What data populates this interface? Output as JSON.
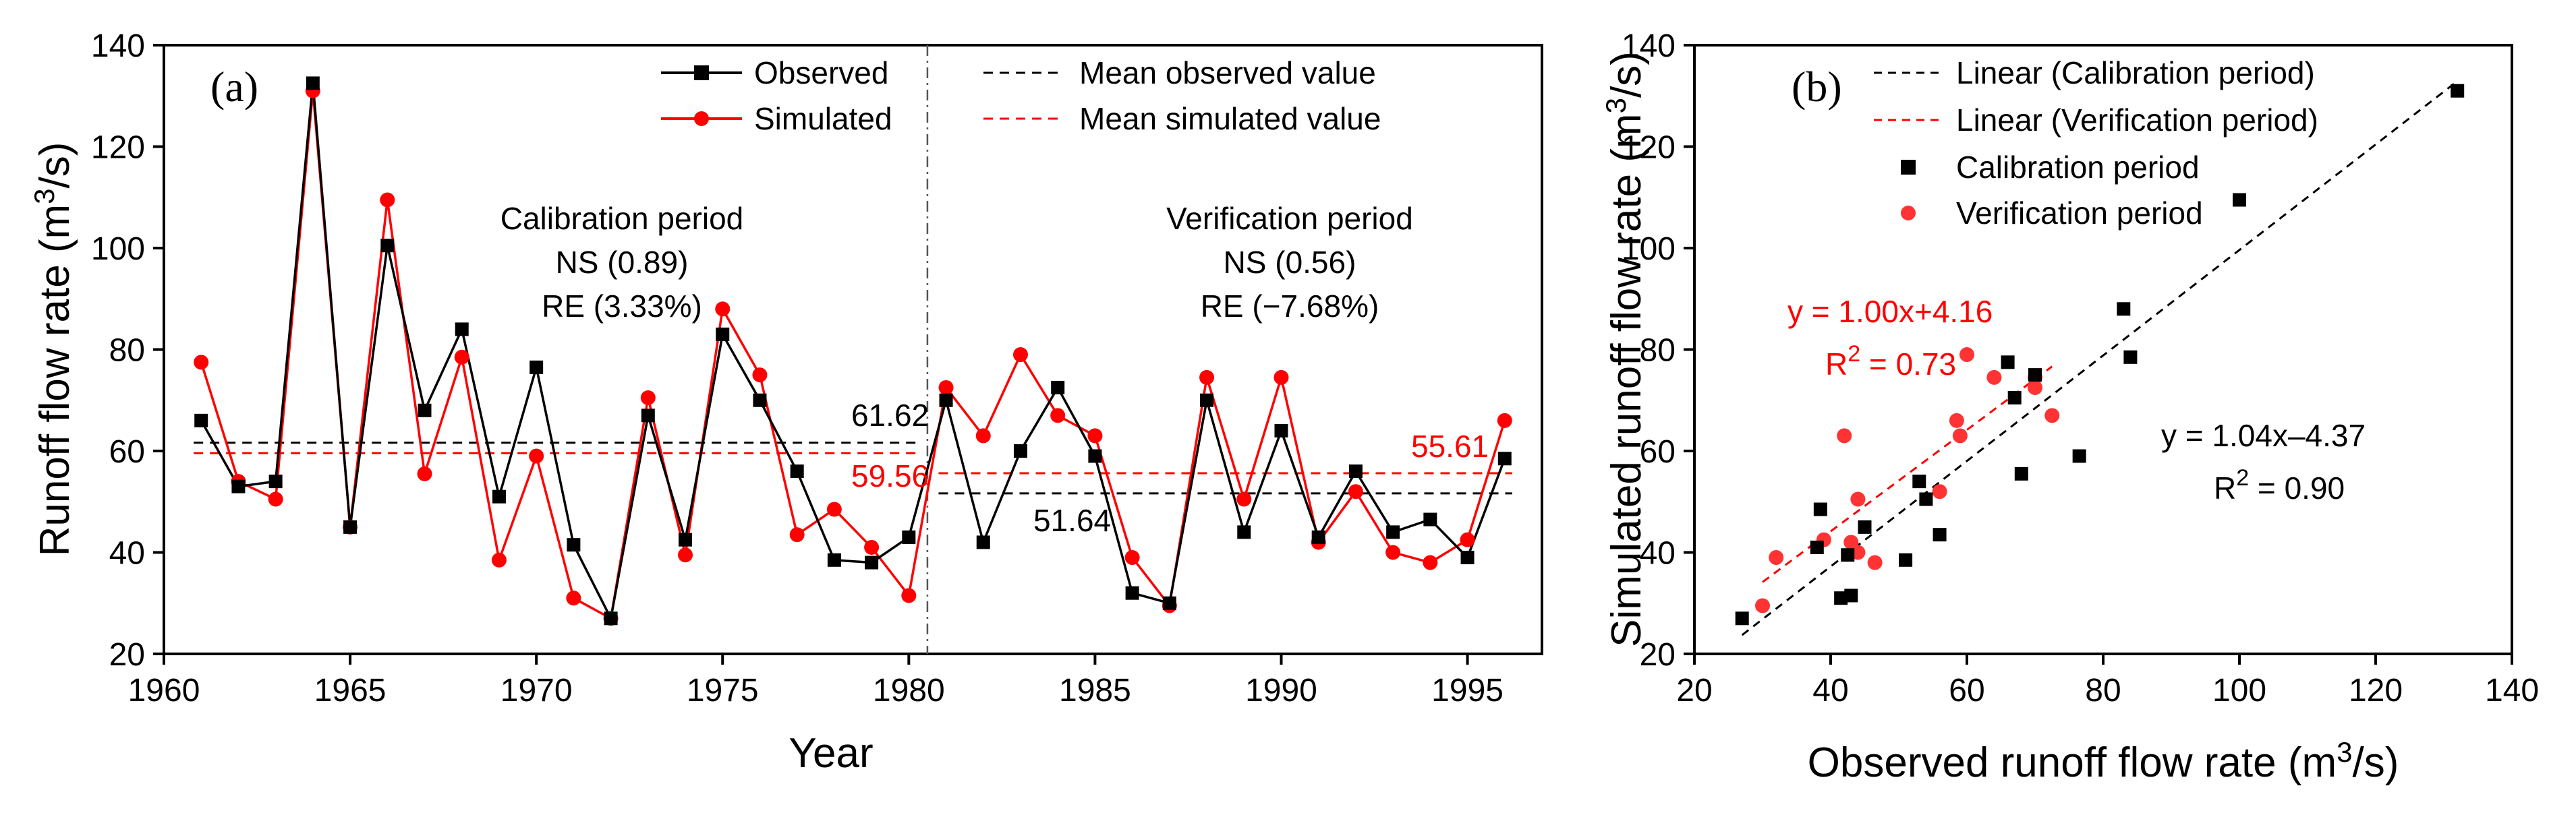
{
  "chart_data": [
    {
      "type": "line",
      "panel_label": "(a)",
      "xlabel": "Year",
      "ylabel_main": "Runoff flow rate (m",
      "ylabel_sup": "3",
      "ylabel_tail": "/s)",
      "xlim": [
        1960,
        1997
      ],
      "ylim": [
        20,
        140
      ],
      "x_ticks": [
        "1960",
        "1965",
        "1970",
        "1975",
        "1980",
        "1985",
        "1990",
        "1995"
      ],
      "y_ticks": [
        "20",
        "40",
        "60",
        "80",
        "100",
        "120",
        "140"
      ],
      "legend": {
        "observed": "Observed",
        "simulated": "Simulated",
        "mean_observed": "Mean observed value",
        "mean_simulated": "Mean simulated value"
      },
      "colors": {
        "observed": "#000000",
        "simulated": "#ff0000"
      },
      "divider_year": 1980.5,
      "years": [
        1961,
        1962,
        1963,
        1964,
        1965,
        1966,
        1967,
        1968,
        1969,
        1970,
        1971,
        1972,
        1973,
        1974,
        1975,
        1976,
        1977,
        1978,
        1979,
        1980,
        1981,
        1982,
        1983,
        1984,
        1985,
        1986,
        1987,
        1988,
        1989,
        1990,
        1991,
        1992,
        1993,
        1994,
        1995,
        1996
      ],
      "series": [
        {
          "name": "Observed",
          "values": [
            66,
            53,
            54,
            132.5,
            45,
            100.5,
            68,
            84,
            51,
            76.5,
            41.5,
            27,
            67,
            42.5,
            83,
            70,
            56,
            38.5,
            38,
            43,
            70,
            42,
            60,
            72.5,
            59,
            32,
            30,
            70,
            44,
            64,
            43,
            56,
            44,
            46.5,
            39,
            58.5
          ]
        },
        {
          "name": "Simulated",
          "values": [
            77.5,
            54,
            50.5,
            131,
            45,
            109.5,
            55.5,
            78.5,
            38.5,
            59,
            31,
            27,
            70.5,
            39.5,
            88,
            75,
            43.5,
            48.5,
            41,
            31.5,
            72.5,
            63,
            79,
            67,
            63,
            39,
            29.5,
            74.5,
            50.5,
            74.5,
            42,
            52,
            40,
            38,
            42.5,
            66
          ]
        }
      ],
      "calibration": {
        "title": "Calibration period",
        "ns": "NS (0.89)",
        "re": "RE (3.33%)",
        "mean_observed": 61.62,
        "mean_simulated": 59.56,
        "mean_observed_label": "61.62",
        "mean_simulated_label": "59.56",
        "x_range": [
          1961,
          1980
        ]
      },
      "verification": {
        "title": "Verification period",
        "ns": "NS (0.56)",
        "re": "RE (−7.68%)",
        "mean_observed": 51.64,
        "mean_simulated": 55.61,
        "mean_observed_label": "51.64",
        "mean_simulated_label": "55.61",
        "x_range": [
          1981,
          1996
        ]
      }
    },
    {
      "type": "scatter",
      "panel_label": "(b)",
      "xlabel_main": "Observed runoff flow rate (m",
      "xlabel_sup": "3",
      "xlabel_tail": "/s)",
      "ylabel_main": "Simulated runoff flow rate (m",
      "ylabel_sup": "3",
      "ylabel_tail": "/s)",
      "xlim": [
        20,
        140
      ],
      "ylim": [
        20,
        140
      ],
      "x_ticks": [
        "20",
        "40",
        "60",
        "80",
        "100",
        "120",
        "140"
      ],
      "y_ticks": [
        "20",
        "40",
        "60",
        "80",
        "100",
        "120",
        "140"
      ],
      "legend": {
        "linear_calibration": "Linear (Calibration period)",
        "linear_verification": "Linear (Verification period)",
        "calibration": "Calibration period",
        "verification": "Verification period"
      },
      "colors": {
        "calibration": "#000000",
        "verification": "#ff3333",
        "verification_line": "#ff0000"
      },
      "calibration_points": [
        [
          66,
          77.5
        ],
        [
          53,
          54
        ],
        [
          54,
          50.5
        ],
        [
          132,
          131
        ],
        [
          45,
          45
        ],
        [
          100,
          109.5
        ],
        [
          68,
          55.5
        ],
        [
          84,
          78.5
        ],
        [
          51,
          38.5
        ],
        [
          76.5,
          59
        ],
        [
          41.5,
          31
        ],
        [
          27,
          27
        ],
        [
          67,
          70.5
        ],
        [
          42.5,
          39.5
        ],
        [
          83,
          88
        ],
        [
          70,
          75
        ],
        [
          56,
          43.5
        ],
        [
          38.5,
          48.5
        ],
        [
          38,
          41
        ],
        [
          43,
          31.5
        ]
      ],
      "verification_points": [
        [
          70,
          72.5
        ],
        [
          42,
          63
        ],
        [
          60,
          79
        ],
        [
          72.5,
          67
        ],
        [
          59,
          63
        ],
        [
          32,
          39
        ],
        [
          30,
          29.5
        ],
        [
          70,
          74.5
        ],
        [
          44,
          50.5
        ],
        [
          64,
          74.5
        ],
        [
          43,
          42
        ],
        [
          56,
          52
        ],
        [
          44,
          40
        ],
        [
          46.5,
          38
        ],
        [
          39,
          42.5
        ],
        [
          58.5,
          66
        ]
      ],
      "fit_calibration": {
        "slope": 1.04,
        "intercept": -4.37,
        "x_range": [
          27,
          132
        ],
        "equation": "y = 1.04x–4.37",
        "r2_prefix": "R",
        "r2_sup": "2",
        "r2_value": " = 0.90"
      },
      "fit_verification": {
        "slope": 1.0,
        "intercept": 4.16,
        "x_range": [
          30,
          72.5
        ],
        "equation": "y = 1.00x+4.16",
        "r2_prefix": "R",
        "r2_sup": "2",
        "r2_value": " = 0.73"
      }
    }
  ]
}
